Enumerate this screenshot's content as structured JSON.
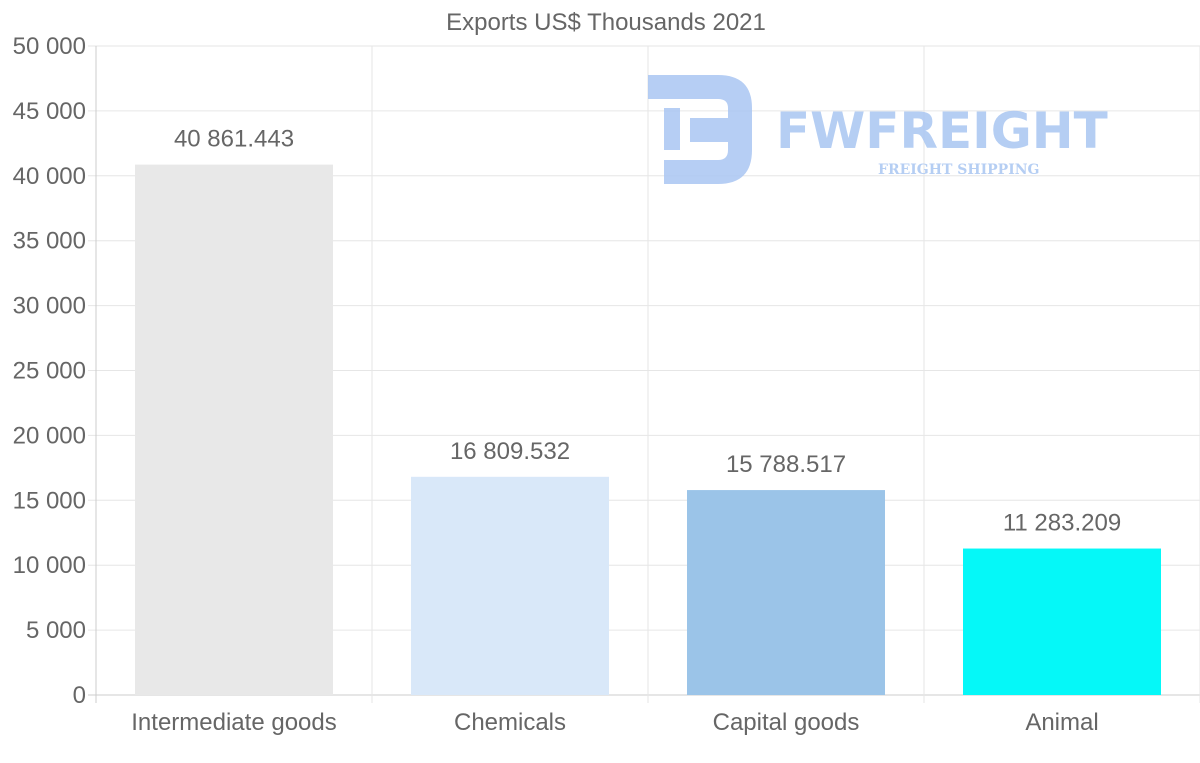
{
  "chart_data": {
    "type": "bar",
    "title": "Exports US$ Thousands 2021",
    "categories": [
      "Intermediate goods",
      "Chemicals",
      "Capital goods",
      "Animal"
    ],
    "values": [
      40861.443,
      16809.532,
      15788.517,
      11283.209
    ],
    "value_labels": [
      "40 861.443",
      "16 809.532",
      "15 788.517",
      "11 283.209"
    ],
    "colors": [
      "#e8e8e8",
      "#d9e8f9",
      "#9bc4e8",
      "#05f8f8"
    ],
    "ylim": [
      0,
      50000
    ],
    "yticks": [
      0,
      5000,
      10000,
      15000,
      20000,
      25000,
      30000,
      35000,
      40000,
      45000,
      50000
    ],
    "ytick_labels": [
      "0",
      "5 000",
      "10 000",
      "15 000",
      "20 000",
      "25 000",
      "30 000",
      "35 000",
      "40 000",
      "45 000",
      "50 000"
    ],
    "xlabel": "",
    "ylabel": "",
    "grid": true
  },
  "watermark": {
    "name": "FWFREIGHT",
    "tagline": "FREIGHT SHIPPING",
    "color": "#a9c6f2"
  }
}
